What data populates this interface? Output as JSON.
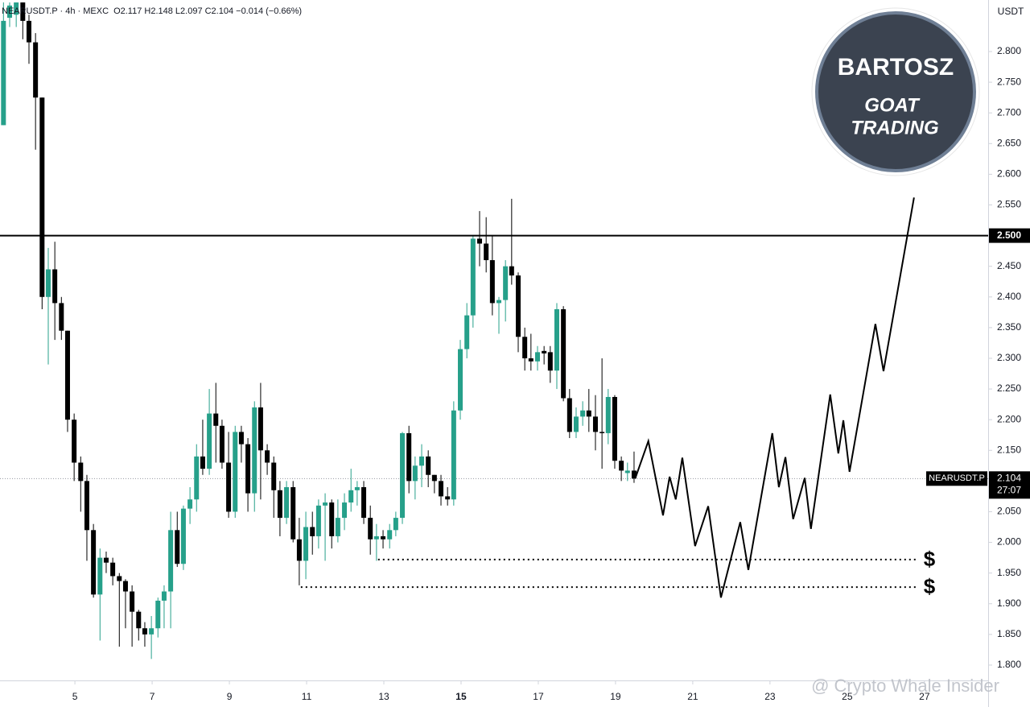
{
  "chart_data": {
    "type": "candlestick",
    "header": "NEARUSDT.P · 4h · MEXC",
    "ohlc_text": "O2.117 H2.148 L2.097 C2.104 −0.014 (−0.66%)",
    "currency": "USDT",
    "watermark": "@ Crypto Whale Insider",
    "logo": {
      "name": "BARTOSZ",
      "line1": "GOAT",
      "line2": "TRADING"
    },
    "up_color": "#26a08a",
    "down_color": "#000000",
    "xlim": [
      3.06,
      28.65
    ],
    "xticks": [
      5,
      7,
      9,
      11,
      13,
      15,
      17,
      19,
      21,
      23,
      25,
      27
    ],
    "bold_xtick": 15,
    "ylim": [
      1.775,
      2.884
    ],
    "yticks": [
      {
        "value": 1.8,
        "label": "1.800"
      },
      {
        "value": 1.85,
        "label": "1.850"
      },
      {
        "value": 1.9,
        "label": "1.900"
      },
      {
        "value": 1.95,
        "label": "1.950"
      },
      {
        "value": 2.0,
        "label": "2.000"
      },
      {
        "value": 2.05,
        "label": "2.050"
      },
      {
        "value": 2.1,
        "label": "2.100"
      },
      {
        "value": 2.15,
        "label": "2.150"
      },
      {
        "value": 2.2,
        "label": "2.200"
      },
      {
        "value": 2.25,
        "label": "2.250"
      },
      {
        "value": 2.3,
        "label": "2.300"
      },
      {
        "value": 2.35,
        "label": "2.350"
      },
      {
        "value": 2.4,
        "label": "2.400"
      },
      {
        "value": 2.45,
        "label": "2.450"
      },
      {
        "value": 2.55,
        "label": "2.550"
      },
      {
        "value": 2.6,
        "label": "2.600"
      },
      {
        "value": 2.65,
        "label": "2.650"
      },
      {
        "value": 2.7,
        "label": "2.700"
      },
      {
        "value": 2.75,
        "label": "2.750"
      },
      {
        "value": 2.8,
        "label": "2.800"
      }
    ],
    "x": [
      3.15,
      3.31,
      3.48,
      3.65,
      3.81,
      3.98,
      4.15,
      4.31,
      4.48,
      4.65,
      4.81,
      4.98,
      5.15,
      5.31,
      5.48,
      5.65,
      5.81,
      5.98,
      6.15,
      6.31,
      6.48,
      6.65,
      6.81,
      6.98,
      7.15,
      7.31,
      7.48,
      7.65,
      7.81,
      7.98,
      8.15,
      8.31,
      8.48,
      8.65,
      8.81,
      8.98,
      9.15,
      9.31,
      9.48,
      9.65,
      9.81,
      9.98,
      10.15,
      10.31,
      10.48,
      10.65,
      10.81,
      10.98,
      11.15,
      11.31,
      11.48,
      11.65,
      11.81,
      11.98,
      12.15,
      12.31,
      12.48,
      12.65,
      12.81,
      12.98,
      13.15,
      13.31,
      13.48,
      13.65,
      13.81,
      13.98,
      14.15,
      14.31,
      14.48,
      14.65,
      14.81,
      14.98,
      15.15,
      15.31,
      15.48,
      15.65,
      15.81,
      15.98,
      16.15,
      16.31,
      16.48,
      16.65,
      16.81,
      16.98,
      17.15,
      17.31,
      17.48,
      17.65,
      17.81,
      17.98,
      18.15,
      18.31,
      18.48,
      18.65,
      18.81,
      18.98,
      19.15,
      19.31,
      19.48
    ],
    "open": [
      2.68,
      2.855,
      2.86,
      2.88,
      2.85,
      2.815,
      2.725,
      2.4,
      2.445,
      2.39,
      2.345,
      2.2,
      2.13,
      2.1,
      2.02,
      1.915,
      1.975,
      1.967,
      1.945,
      1.937,
      1.92,
      1.887,
      1.86,
      1.85,
      1.86,
      1.905,
      1.92,
      2.02,
      1.965,
      2.055,
      2.07,
      2.14,
      2.12,
      2.21,
      2.19,
      2.13,
      2.05,
      2.18,
      2.16,
      2.08,
      2.22,
      2.15,
      2.13,
      2.085,
      2.04,
      2.09,
      2.005,
      1.97,
      2.025,
      2.01,
      2.06,
      2.065,
      2.01,
      2.04,
      2.065,
      2.085,
      2.09,
      2.04,
      2.005,
      2.01,
      2.005,
      2.02,
      2.04,
      2.178,
      2.1,
      2.125,
      2.14,
      2.11,
      2.1,
      2.075,
      2.07,
      2.215,
      2.315,
      2.37,
      2.495,
      2.487,
      2.46,
      2.39,
      2.395,
      2.45,
      2.435,
      2.335,
      2.3,
      2.295,
      2.312,
      2.31,
      2.28,
      2.38,
      2.235,
      2.18,
      2.205,
      2.215,
      2.205,
      2.18,
      2.178,
      2.237,
      2.133,
      2.113,
      2.117
    ],
    "high": [
      2.88,
      2.88,
      2.88,
      2.88,
      2.86,
      2.83,
      2.725,
      2.48,
      2.49,
      2.4,
      2.345,
      2.21,
      2.14,
      2.11,
      2.03,
      1.99,
      1.985,
      1.975,
      1.95,
      1.94,
      1.93,
      1.89,
      1.87,
      1.88,
      1.91,
      1.93,
      2.05,
      2.05,
      2.06,
      2.09,
      2.16,
      2.2,
      2.25,
      2.26,
      2.2,
      2.18,
      2.19,
      2.19,
      2.17,
      2.23,
      2.26,
      2.16,
      2.14,
      2.1,
      2.1,
      2.1,
      2.04,
      2.05,
      2.05,
      2.07,
      2.08,
      2.07,
      2.07,
      2.08,
      2.12,
      2.1,
      2.1,
      2.06,
      2.03,
      2.02,
      2.03,
      2.05,
      2.18,
      2.19,
      2.14,
      2.16,
      2.15,
      2.11,
      2.11,
      2.09,
      2.23,
      2.33,
      2.39,
      2.5,
      2.54,
      2.53,
      2.5,
      2.4,
      2.46,
      2.56,
      2.44,
      2.35,
      2.34,
      2.32,
      2.32,
      2.32,
      2.39,
      2.385,
      2.25,
      2.22,
      2.23,
      2.25,
      2.24,
      2.3,
      2.25,
      2.24,
      2.14,
      2.13,
      2.148
    ],
    "low": [
      2.68,
      2.84,
      2.84,
      2.82,
      2.78,
      2.64,
      2.38,
      2.29,
      2.33,
      2.33,
      2.18,
      2.1,
      2.05,
      1.97,
      1.91,
      1.84,
      1.95,
      1.93,
      1.83,
      1.86,
      1.83,
      1.84,
      1.83,
      1.81,
      1.845,
      1.86,
      1.86,
      1.96,
      1.955,
      2.03,
      2.05,
      2.11,
      2.11,
      2.13,
      2.12,
      2.04,
      2.04,
      2.13,
      2.05,
      2.05,
      2.07,
      2.11,
      2.04,
      2.01,
      2.03,
      2.0,
      1.93,
      1.94,
      1.98,
      1.99,
      1.97,
      1.99,
      2.0,
      2.02,
      2.05,
      2.06,
      2.03,
      1.98,
      1.97,
      1.99,
      1.99,
      2.01,
      2.03,
      2.08,
      2.07,
      2.09,
      2.09,
      2.08,
      2.06,
      2.06,
      2.06,
      2.2,
      2.3,
      2.35,
      2.45,
      2.44,
      2.37,
      2.34,
      2.36,
      2.42,
      2.31,
      2.28,
      2.28,
      2.28,
      2.29,
      2.26,
      2.25,
      2.23,
      2.17,
      2.17,
      2.19,
      2.18,
      2.15,
      2.12,
      2.16,
      2.12,
      2.1,
      2.1,
      2.097
    ],
    "close": [
      2.85,
      2.875,
      2.88,
      2.85,
      2.815,
      2.725,
      2.4,
      2.445,
      2.39,
      2.345,
      2.2,
      2.13,
      2.1,
      2.02,
      1.915,
      1.975,
      1.967,
      1.945,
      1.937,
      1.92,
      1.887,
      1.86,
      1.85,
      1.86,
      1.905,
      1.92,
      2.02,
      1.965,
      2.055,
      2.07,
      2.14,
      2.12,
      2.21,
      2.19,
      2.13,
      2.05,
      2.18,
      2.16,
      2.08,
      2.22,
      2.15,
      2.13,
      2.085,
      2.04,
      2.09,
      2.005,
      1.97,
      2.025,
      2.01,
      2.06,
      2.065,
      2.01,
      2.04,
      2.065,
      2.085,
      2.09,
      2.04,
      2.005,
      2.01,
      2.005,
      2.02,
      2.04,
      2.178,
      2.1,
      2.125,
      2.14,
      2.11,
      2.1,
      2.075,
      2.07,
      2.215,
      2.315,
      2.37,
      2.495,
      2.487,
      2.46,
      2.39,
      2.395,
      2.45,
      2.435,
      2.335,
      2.3,
      2.295,
      2.31,
      2.308,
      2.28,
      2.38,
      2.235,
      2.18,
      2.205,
      2.215,
      2.205,
      2.18,
      2.178,
      2.237,
      2.133,
      2.117,
      2.117,
      2.104
    ],
    "projection": {
      "color": "#000000",
      "x": [
        19.52,
        19.85,
        20.23,
        20.4,
        20.56,
        20.73,
        21.06,
        21.4,
        21.73,
        22.23,
        22.44,
        23.06,
        23.23,
        23.4,
        23.6,
        23.9,
        24.06,
        24.56,
        24.77,
        24.9,
        25.06,
        25.73,
        25.94,
        26.73
      ],
      "values": [
        2.106,
        2.165,
        2.044,
        2.107,
        2.07,
        2.138,
        1.994,
        2.059,
        1.91,
        2.033,
        1.955,
        2.178,
        2.09,
        2.139,
        2.038,
        2.105,
        2.022,
        2.241,
        2.145,
        2.199,
        2.115,
        2.356,
        2.279,
        2.562
      ]
    },
    "levels": [
      {
        "value": 2.5,
        "label": "2.500"
      }
    ],
    "liquidity": [
      {
        "value": 1.972,
        "x_start": 12.85,
        "label": "$"
      },
      {
        "value": 1.927,
        "x_start": 10.85,
        "label": "$"
      }
    ],
    "last_price": {
      "value": 2.104,
      "label": "2.104",
      "symbol": "NEARUSDT.P",
      "countdown": "27:07"
    }
  }
}
